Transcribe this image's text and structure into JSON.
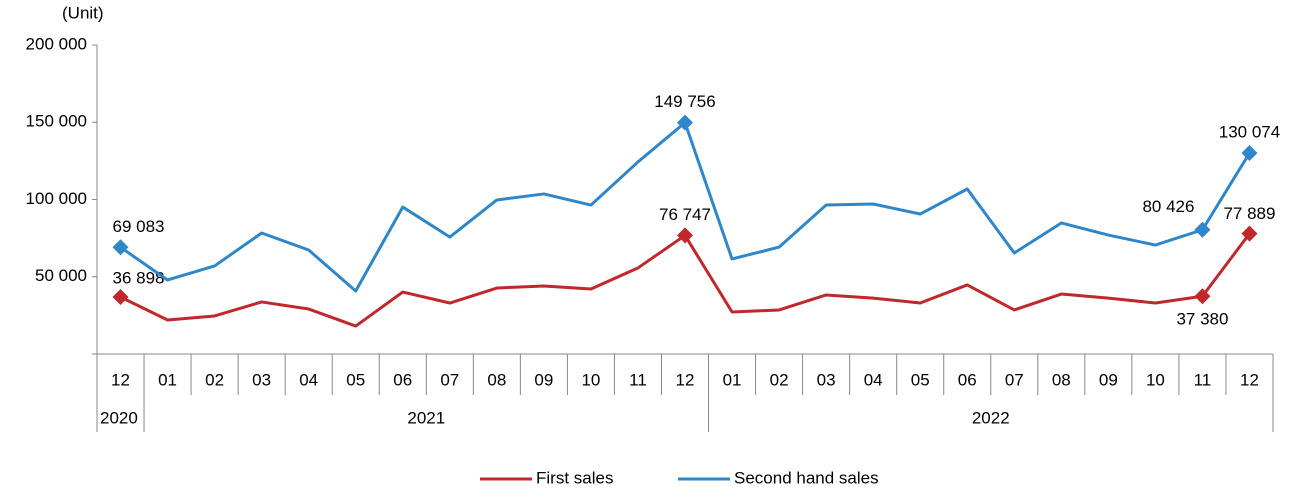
{
  "chart_data": {
    "type": "line",
    "y_label": "(Unit)",
    "categories": [
      "12",
      "01",
      "02",
      "03",
      "04",
      "05",
      "06",
      "07",
      "08",
      "09",
      "10",
      "11",
      "12",
      "01",
      "02",
      "03",
      "04",
      "05",
      "06",
      "07",
      "08",
      "09",
      "10",
      "11",
      "12"
    ],
    "year_groups": [
      {
        "label": "2020",
        "count": 1
      },
      {
        "label": "2021",
        "count": 12
      },
      {
        "label": "2022",
        "count": 12
      }
    ],
    "ylim": [
      0,
      200000
    ],
    "yticks": [
      {
        "value": 50000,
        "label": "50 000"
      },
      {
        "value": 100000,
        "label": "100 000"
      },
      {
        "value": 150000,
        "label": "150 000"
      },
      {
        "value": 200000,
        "label": "200 000"
      }
    ],
    "legend": "bottom",
    "series": [
      {
        "name": "First sales",
        "color": "#c0282c",
        "values": [
          36898,
          22000,
          24600,
          33700,
          29100,
          18100,
          40100,
          33000,
          42700,
          44000,
          42100,
          55700,
          76747,
          27200,
          28500,
          38200,
          36200,
          33000,
          44700,
          28500,
          38800,
          36200,
          33000,
          37380,
          77889
        ],
        "value_labels": [
          "36 898",
          null,
          null,
          null,
          null,
          null,
          null,
          null,
          null,
          null,
          null,
          null,
          "76 747",
          null,
          null,
          null,
          null,
          null,
          null,
          null,
          null,
          null,
          null,
          "37 380",
          "77 889"
        ]
      },
      {
        "name": "Second hand sales",
        "color": "#2f86c8",
        "values": [
          69083,
          47900,
          57000,
          78300,
          67300,
          40800,
          95100,
          75700,
          99700,
          103600,
          96400,
          124300,
          149756,
          61500,
          69200,
          96400,
          97100,
          90600,
          106800,
          65400,
          84800,
          77000,
          70500,
          80426,
          130074
        ],
        "value_labels": [
          "69 083",
          null,
          null,
          null,
          null,
          null,
          null,
          null,
          null,
          null,
          null,
          null,
          "149 756",
          null,
          null,
          null,
          null,
          null,
          null,
          null,
          null,
          null,
          null,
          "80 426",
          "130 074"
        ]
      }
    ]
  }
}
